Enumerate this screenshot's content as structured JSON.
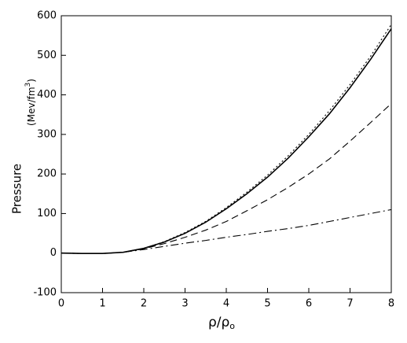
{
  "chart_data": {
    "type": "line",
    "xlabel": {
      "main": "ρ/ρ",
      "sub": "o"
    },
    "ylabel": "Pressure",
    "yunit": {
      "main": "(Mev/fm",
      "sup": "3",
      "end": ")"
    },
    "x": [
      0,
      0.5,
      1,
      1.5,
      2,
      2.5,
      3,
      3.5,
      4,
      4.5,
      5,
      5.5,
      6,
      6.5,
      7,
      7.5,
      8
    ],
    "series": [
      {
        "style": "solid",
        "color": "#000000",
        "values": [
          0,
          -1,
          -1,
          2,
          12,
          28,
          50,
          78,
          112,
          150,
          192,
          240,
          294,
          352,
          418,
          490,
          567
        ]
      },
      {
        "style": "dotted",
        "color": "#000000",
        "values": [
          0,
          -1,
          -1,
          2,
          12,
          29,
          52,
          80,
          115,
          154,
          197,
          246,
          300,
          360,
          426,
          498,
          578
        ]
      },
      {
        "style": "dashed",
        "color": "#000000",
        "values": [
          0,
          -1,
          -1,
          2,
          11,
          24,
          40,
          58,
          80,
          107,
          135,
          166,
          200,
          238,
          283,
          330,
          378
        ]
      },
      {
        "style": "dashdot",
        "color": "#000000",
        "values": [
          0,
          -1,
          -1,
          2,
          9,
          17,
          25,
          32,
          40,
          47,
          55,
          62,
          70,
          80,
          90,
          100,
          110
        ]
      }
    ],
    "xlim": [
      0,
      8
    ],
    "xticks": [
      0,
      1,
      2,
      3,
      4,
      5,
      6,
      7,
      8
    ],
    "ylim": [
      -100,
      600
    ],
    "yticks": [
      -100,
      0,
      100,
      200,
      300,
      400,
      500,
      600
    ],
    "grid": false
  }
}
